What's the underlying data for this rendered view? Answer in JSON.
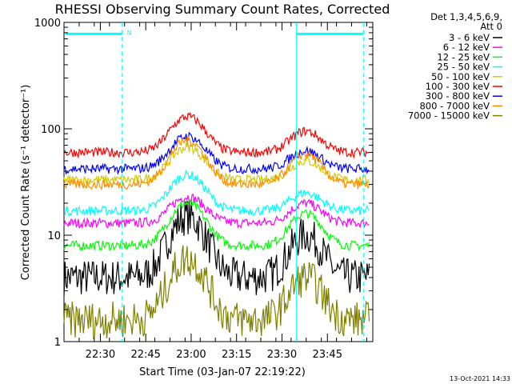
{
  "chart_data": {
    "type": "line",
    "title": "RHESSI Observing Summary Count Rates, Corrected",
    "xlabel": "Start Time (03-Jan-07 22:19:22)",
    "ylabel": "Corrected Count Rate (s⁻¹ detector⁻¹)",
    "yscale": "log",
    "ylim": [
      1,
      1000
    ],
    "xlim_minutes": [
      22.3,
      24.0
    ],
    "x_ticks": [
      {
        "label": "22:30",
        "t": 22.5
      },
      {
        "label": "22:45",
        "t": 22.75
      },
      {
        "label": "23:00",
        "t": 23.0
      },
      {
        "label": "23:15",
        "t": 23.25
      },
      {
        "label": "23:30",
        "t": 23.5
      },
      {
        "label": "23:45",
        "t": 23.75
      }
    ],
    "y_ticks": [
      {
        "label": "1",
        "value": 1
      },
      {
        "label": "10",
        "value": 10
      },
      {
        "label": "100",
        "value": 100
      },
      {
        "label": "1000",
        "value": 1000
      }
    ],
    "legend_header": [
      "Det 1,3,4,5,6,9,",
      "Att 0"
    ],
    "legend_position": "right",
    "series": [
      {
        "name": "3 - 6 keV",
        "color": "#000000",
        "base": 4.0,
        "peak1": 15,
        "peak2": 10
      },
      {
        "name": "6 - 12 keV",
        "color": "#ff00ff",
        "base": 13,
        "peak1": 23,
        "peak2": 20
      },
      {
        "name": "12 - 25 keV",
        "color": "#00ff00",
        "base": 8,
        "peak1": 20,
        "peak2": 16
      },
      {
        "name": "25 - 50 keV",
        "color": "#00ffff",
        "base": 17,
        "peak1": 37,
        "peak2": 25
      },
      {
        "name": "50 - 100 keV",
        "color": "#d4c800",
        "base": 33,
        "peak1": 67,
        "peak2": 50
      },
      {
        "name": "100 - 300 keV",
        "color": "#ff0000",
        "base": 60,
        "peak1": 130,
        "peak2": 95
      },
      {
        "name": "300 - 800 keV",
        "color": "#0000ff",
        "base": 42,
        "peak1": 85,
        "peak2": 62
      },
      {
        "name": "800 - 7000 keV",
        "color": "#ff8c00",
        "base": 30,
        "peak1": 78,
        "peak2": 58
      },
      {
        "name": "7000 - 15000 keV",
        "color": "#808000",
        "base": 1.6,
        "peak1": 6,
        "peak2": 4
      }
    ],
    "annotations": [
      {
        "text": "N",
        "t": 22.62,
        "value": 780
      }
    ],
    "orbit_marks": [
      22.62,
      23.58,
      23.95
    ],
    "footer_date": "13-Oct-2021 14:33"
  }
}
